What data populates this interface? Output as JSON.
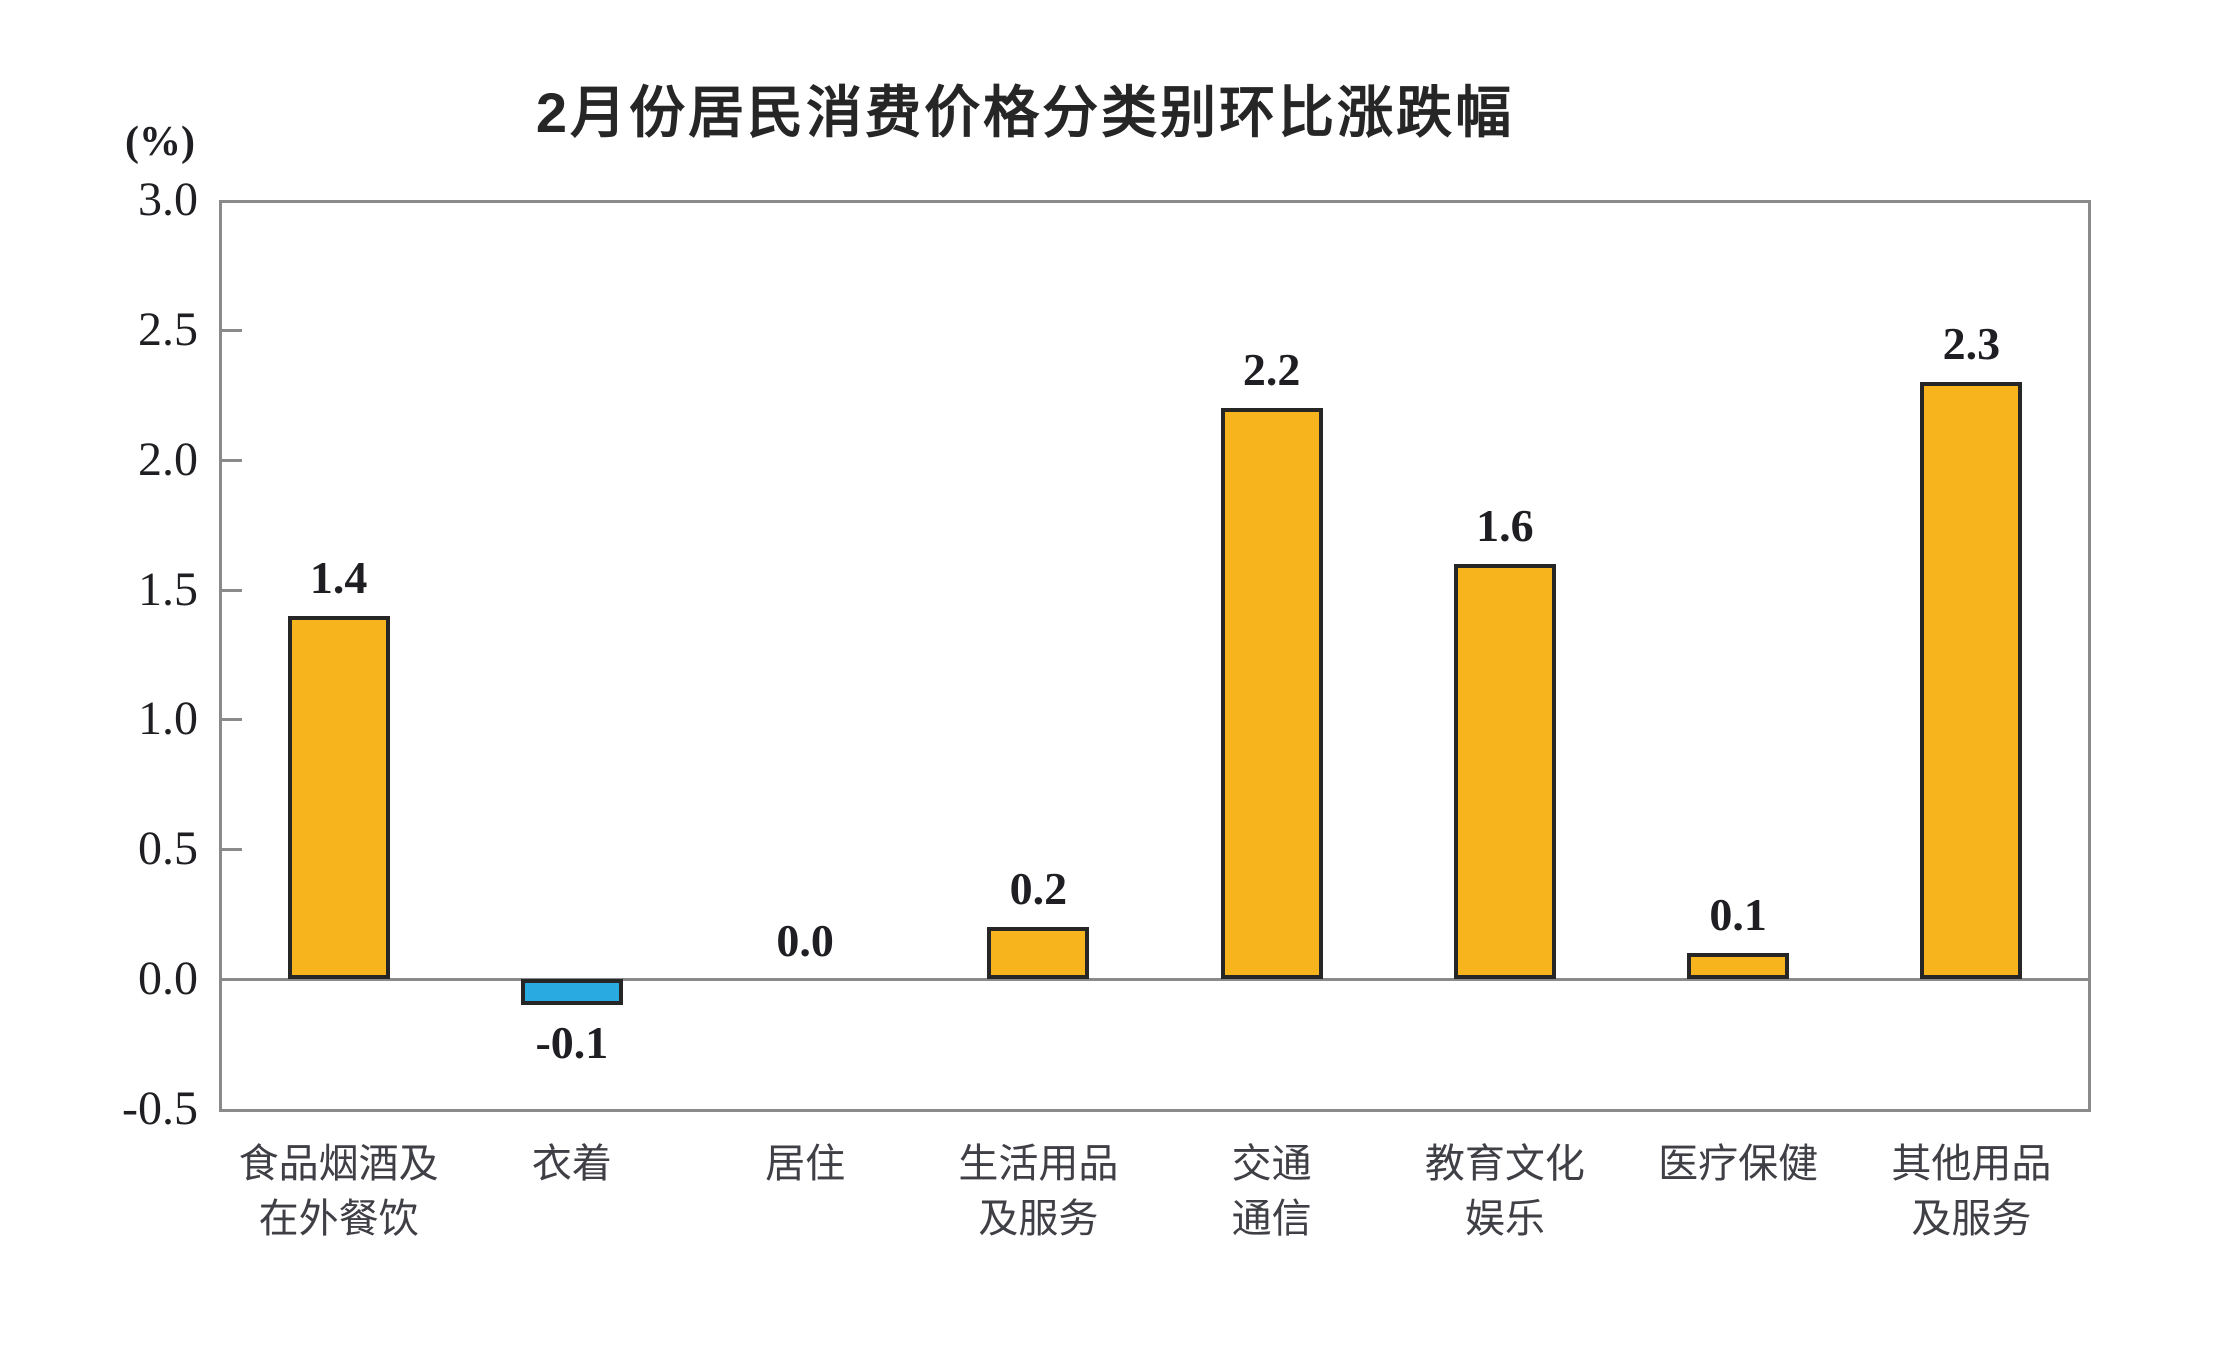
{
  "page": {
    "background": "#ffffff"
  },
  "chart_data": {
    "type": "bar",
    "title": "2月份居民消费价格分类别环比涨跌幅",
    "unit_label": "(%)",
    "categories": [
      "食品烟酒及在外餐饮",
      "衣着",
      "居住",
      "生活用品及服务",
      "交通通信",
      "教育文化娱乐",
      "医疗保健",
      "其他用品及服务"
    ],
    "category_label_lines": [
      [
        "食品烟酒及",
        "在外餐饮"
      ],
      [
        "衣着"
      ],
      [
        "居住"
      ],
      [
        "生活用品",
        "及服务"
      ],
      [
        "交通",
        "通信"
      ],
      [
        "教育文化",
        "娱乐"
      ],
      [
        "医疗保健"
      ],
      [
        "其他用品",
        "及服务"
      ]
    ],
    "values": [
      1.4,
      -0.1,
      0.0,
      0.2,
      2.2,
      1.6,
      0.1,
      2.3
    ],
    "value_labels": [
      "1.4",
      "-0.1",
      "0.0",
      "0.2",
      "2.2",
      "1.6",
      "0.1",
      "2.3"
    ],
    "ylim": [
      -0.5,
      3.0
    ],
    "y_tick_step": 0.5,
    "y_tick_labels": [
      "3.0",
      "2.5",
      "2.0",
      "1.5",
      "1.0",
      "0.5",
      "0.0",
      "-0.5"
    ],
    "y_ticks": [
      3.0,
      2.5,
      2.0,
      1.5,
      1.0,
      0.5,
      0.0,
      -0.5
    ],
    "grid": false,
    "legend": "none",
    "xlabel": "",
    "ylabel": "(%)",
    "colors": {
      "positive_bar": "#F7B41D",
      "negative_bar": "#29ABE2",
      "bar_border": "#262626",
      "axis": "#8A8A8A",
      "value_text": "#1F1F23",
      "tick_text": "#1F1F23",
      "category_text": "#3F3F46",
      "title_text": "#262626"
    }
  }
}
